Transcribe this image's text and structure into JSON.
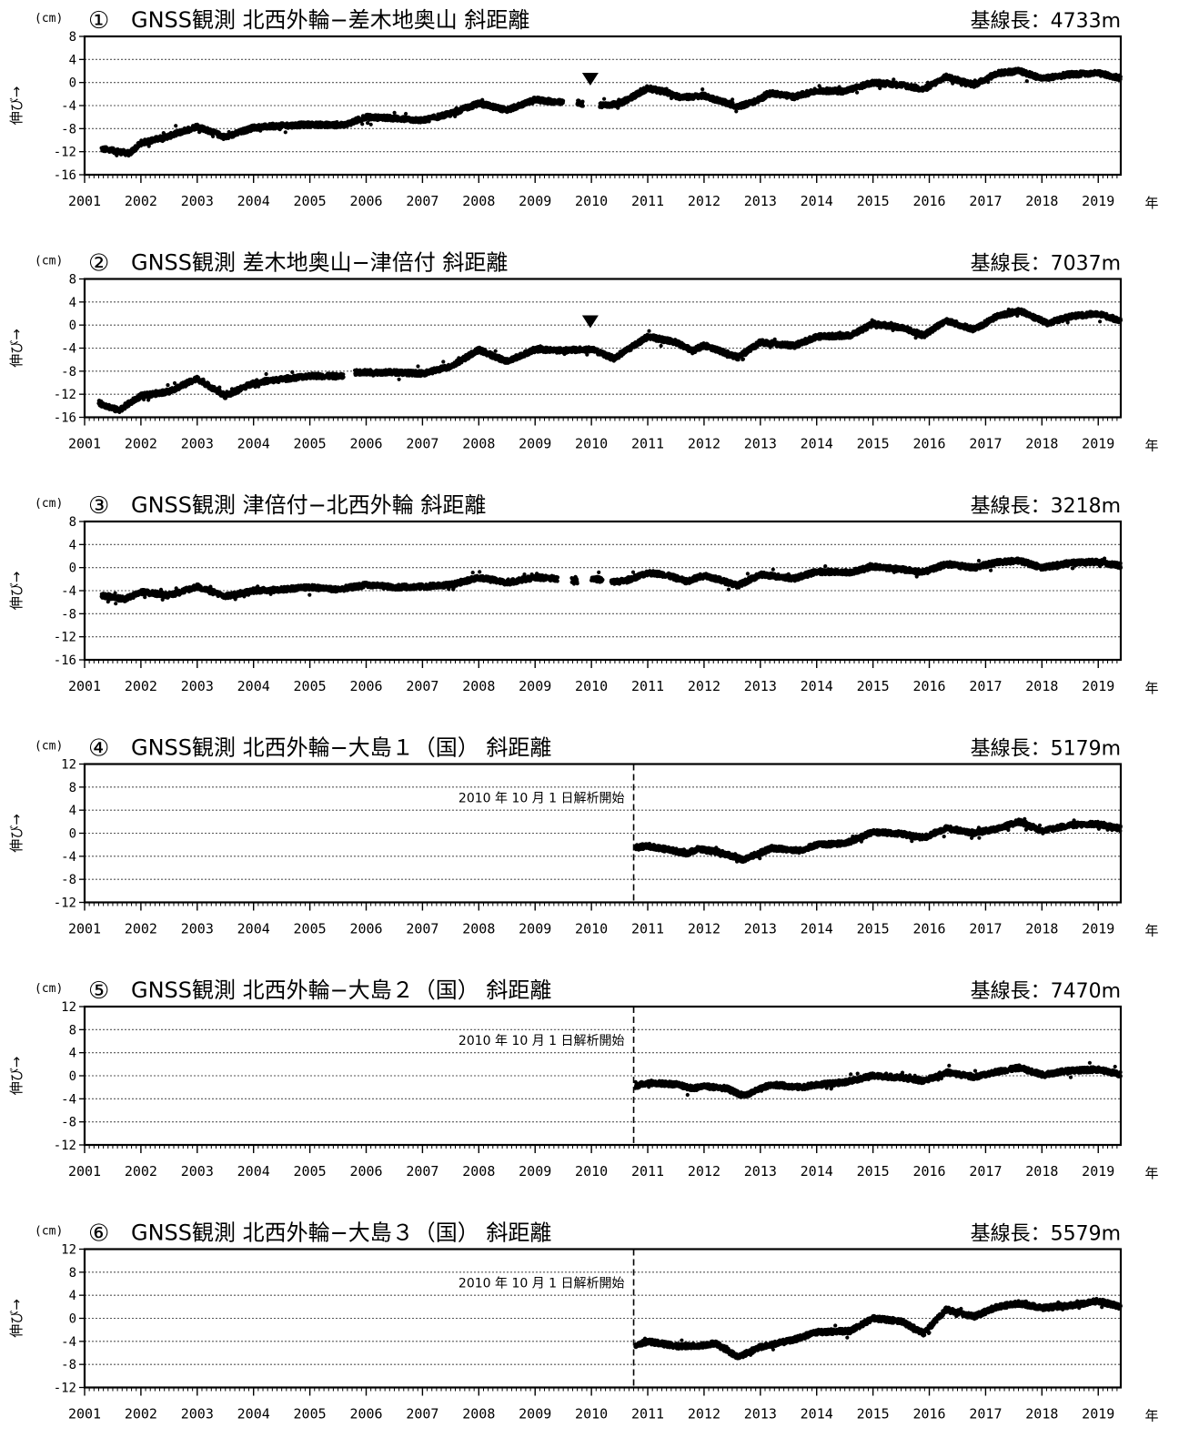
{
  "common": {
    "unit_label": "(cm)",
    "y_axis_label": "伸び→",
    "x_axis_unit": "年",
    "start_note": "2010 年 10 月 1 日解析開始",
    "x_ticks": [
      "2001",
      "2002",
      "2003",
      "2004",
      "2005",
      "2006",
      "2007",
      "2008",
      "2009",
      "2010",
      "2011",
      "2012",
      "2013",
      "2014",
      "2015",
      "2016",
      "2017",
      "2018",
      "2019"
    ],
    "x_range": [
      2001.0,
      2019.4
    ],
    "marker_symbol": "▼",
    "colors": {
      "data": "#000000",
      "grid": "#555555",
      "axis": "#000000",
      "background": "#ffffff"
    }
  },
  "chart_data": [
    {
      "type": "scatter",
      "number": "①",
      "title": "GNSS観測 北西外輪−差木地奥山 斜距離",
      "baseline": "基線長：4733m",
      "ylim": [
        -16,
        8
      ],
      "y_ticks": [
        8,
        4,
        0,
        -4,
        -8,
        -12,
        -16
      ],
      "start_line_year": null,
      "marker_year": 2009.98,
      "segments": [
        {
          "from": 2001.3,
          "to": 2009.5,
          "points": [
            [
              2001.3,
              -11.5
            ],
            [
              2001.8,
              -12.3
            ],
            [
              2002.0,
              -10.5
            ],
            [
              2002.5,
              -9.3
            ],
            [
              2003.0,
              -7.6
            ],
            [
              2003.5,
              -9.5
            ],
            [
              2004.0,
              -7.8
            ],
            [
              2004.5,
              -7.5
            ],
            [
              2005.0,
              -7.3
            ],
            [
              2005.6,
              -7.4
            ],
            [
              2006.0,
              -6.0
            ],
            [
              2006.5,
              -6.2
            ],
            [
              2007.0,
              -6.6
            ],
            [
              2007.5,
              -5.4
            ],
            [
              2008.0,
              -3.6
            ],
            [
              2008.5,
              -4.8
            ],
            [
              2009.0,
              -3.0
            ],
            [
              2009.5,
              -3.5
            ]
          ]
        },
        {
          "from": 2009.75,
          "to": 2009.85,
          "points": [
            [
              2009.75,
              -3.5
            ],
            [
              2009.85,
              -3.7
            ]
          ]
        },
        {
          "from": 2010.15,
          "to": 2019.4,
          "points": [
            [
              2010.15,
              -4.0
            ],
            [
              2010.5,
              -3.7
            ],
            [
              2011.0,
              -1.0
            ],
            [
              2011.3,
              -1.6
            ],
            [
              2011.6,
              -2.6
            ],
            [
              2012.0,
              -2.3
            ],
            [
              2012.6,
              -4.2
            ],
            [
              2012.9,
              -3.3
            ],
            [
              2013.2,
              -1.8
            ],
            [
              2013.6,
              -2.5
            ],
            [
              2014.0,
              -1.4
            ],
            [
              2014.5,
              -1.5
            ],
            [
              2015.0,
              0.0
            ],
            [
              2015.5,
              -0.4
            ],
            [
              2015.9,
              -1.2
            ],
            [
              2016.3,
              1.0
            ],
            [
              2016.8,
              -0.4
            ],
            [
              2017.2,
              1.6
            ],
            [
              2017.6,
              2.0
            ],
            [
              2018.0,
              0.7
            ],
            [
              2018.5,
              1.4
            ],
            [
              2019.0,
              1.6
            ],
            [
              2019.4,
              0.8
            ]
          ]
        }
      ]
    },
    {
      "type": "scatter",
      "number": "②",
      "title": "GNSS観測 差木地奥山−津倍付 斜距離",
      "baseline": "基線長：7037m",
      "ylim": [
        -16,
        8
      ],
      "y_ticks": [
        8,
        4,
        0,
        -4,
        -8,
        -12,
        -16
      ],
      "start_line_year": null,
      "marker_year": 2009.98,
      "segments": [
        {
          "from": 2001.25,
          "to": 2005.6,
          "points": [
            [
              2001.25,
              -13.5
            ],
            [
              2001.6,
              -14.8
            ],
            [
              2002.0,
              -12.3
            ],
            [
              2002.5,
              -11.5
            ],
            [
              2003.0,
              -9.3
            ],
            [
              2003.5,
              -12.3
            ],
            [
              2004.0,
              -10.0
            ],
            [
              2004.5,
              -9.4
            ],
            [
              2005.0,
              -8.8
            ],
            [
              2005.6,
              -8.9
            ]
          ]
        },
        {
          "from": 2005.8,
          "to": 2019.4,
          "points": [
            [
              2005.8,
              -8.2
            ],
            [
              2006.5,
              -8.2
            ],
            [
              2007.0,
              -8.4
            ],
            [
              2007.5,
              -7.2
            ],
            [
              2008.0,
              -4.3
            ],
            [
              2008.5,
              -6.3
            ],
            [
              2009.0,
              -4.2
            ],
            [
              2009.5,
              -4.4
            ],
            [
              2010.0,
              -4.2
            ],
            [
              2010.4,
              -5.8
            ],
            [
              2011.0,
              -2.0
            ],
            [
              2011.5,
              -3.0
            ],
            [
              2011.8,
              -4.5
            ],
            [
              2012.0,
              -3.5
            ],
            [
              2012.6,
              -5.6
            ],
            [
              2013.0,
              -3.0
            ],
            [
              2013.6,
              -3.6
            ],
            [
              2014.0,
              -2.0
            ],
            [
              2014.6,
              -1.8
            ],
            [
              2015.0,
              0.2
            ],
            [
              2015.5,
              -0.4
            ],
            [
              2015.9,
              -1.8
            ],
            [
              2016.3,
              0.8
            ],
            [
              2016.8,
              -0.8
            ],
            [
              2017.2,
              1.5
            ],
            [
              2017.6,
              2.5
            ],
            [
              2018.1,
              0.3
            ],
            [
              2018.5,
              1.5
            ],
            [
              2019.0,
              2.0
            ],
            [
              2019.4,
              0.7
            ]
          ]
        }
      ]
    },
    {
      "type": "scatter",
      "number": "③",
      "title": "GNSS観測 津倍付−北西外輪 斜距離",
      "baseline": "基線長：3218m",
      "ylim": [
        -16,
        8
      ],
      "y_ticks": [
        8,
        4,
        0,
        -4,
        -8,
        -12,
        -16
      ],
      "start_line_year": null,
      "marker_year": null,
      "segments": [
        {
          "from": 2001.3,
          "to": 2009.4,
          "points": [
            [
              2001.3,
              -4.8
            ],
            [
              2001.7,
              -5.5
            ],
            [
              2002.0,
              -4.2
            ],
            [
              2002.5,
              -4.8
            ],
            [
              2003.0,
              -3.3
            ],
            [
              2003.5,
              -5.0
            ],
            [
              2004.0,
              -4.0
            ],
            [
              2004.5,
              -3.8
            ],
            [
              2005.0,
              -3.4
            ],
            [
              2005.5,
              -3.8
            ],
            [
              2006.0,
              -3.0
            ],
            [
              2006.5,
              -3.4
            ],
            [
              2007.0,
              -3.3
            ],
            [
              2007.5,
              -3.0
            ],
            [
              2008.0,
              -1.7
            ],
            [
              2008.5,
              -2.6
            ],
            [
              2009.0,
              -1.7
            ],
            [
              2009.4,
              -1.9
            ]
          ]
        },
        {
          "from": 2009.65,
          "to": 2009.75,
          "points": [
            [
              2009.65,
              -2.1
            ],
            [
              2009.75,
              -2.0
            ]
          ]
        },
        {
          "from": 2010.0,
          "to": 2010.2,
          "points": [
            [
              2010.0,
              -1.8
            ],
            [
              2010.2,
              -2.2
            ]
          ]
        },
        {
          "from": 2010.35,
          "to": 2019.4,
          "points": [
            [
              2010.35,
              -2.5
            ],
            [
              2010.6,
              -2.3
            ],
            [
              2011.0,
              -0.9
            ],
            [
              2011.3,
              -1.2
            ],
            [
              2011.7,
              -2.4
            ],
            [
              2012.0,
              -1.3
            ],
            [
              2012.6,
              -3.1
            ],
            [
              2013.0,
              -1.2
            ],
            [
              2013.6,
              -1.9
            ],
            [
              2014.0,
              -0.7
            ],
            [
              2014.6,
              -0.8
            ],
            [
              2015.0,
              0.2
            ],
            [
              2015.5,
              -0.3
            ],
            [
              2015.9,
              -0.8
            ],
            [
              2016.3,
              0.6
            ],
            [
              2016.8,
              0.0
            ],
            [
              2017.2,
              0.9
            ],
            [
              2017.6,
              1.2
            ],
            [
              2018.0,
              0.0
            ],
            [
              2018.5,
              0.8
            ],
            [
              2019.0,
              1.0
            ],
            [
              2019.4,
              0.3
            ]
          ]
        }
      ]
    },
    {
      "type": "scatter",
      "number": "④",
      "title": "GNSS観測 北西外輪−大島１（国） 斜距離",
      "baseline": "基線長：5179m",
      "ylim": [
        -12,
        12
      ],
      "y_ticks": [
        12,
        8,
        4,
        0,
        -4,
        -8,
        -12
      ],
      "start_line_year": 2010.75,
      "marker_year": null,
      "segments": [
        {
          "from": 2010.78,
          "to": 2019.4,
          "points": [
            [
              2010.78,
              -2.5
            ],
            [
              2011.0,
              -2.2
            ],
            [
              2011.4,
              -2.9
            ],
            [
              2011.7,
              -3.5
            ],
            [
              2011.9,
              -2.7
            ],
            [
              2012.3,
              -3.4
            ],
            [
              2012.7,
              -4.6
            ],
            [
              2013.2,
              -2.6
            ],
            [
              2013.7,
              -3.0
            ],
            [
              2014.0,
              -2.0
            ],
            [
              2014.5,
              -1.8
            ],
            [
              2015.0,
              0.2
            ],
            [
              2015.5,
              -0.1
            ],
            [
              2015.9,
              -0.8
            ],
            [
              2016.3,
              0.9
            ],
            [
              2016.8,
              0.0
            ],
            [
              2017.2,
              0.8
            ],
            [
              2017.6,
              2.0
            ],
            [
              2018.0,
              0.4
            ],
            [
              2018.5,
              1.4
            ],
            [
              2019.0,
              1.6
            ],
            [
              2019.4,
              0.8
            ]
          ]
        }
      ]
    },
    {
      "type": "scatter",
      "number": "⑤",
      "title": "GNSS観測 北西外輪−大島２（国） 斜距離",
      "baseline": "基線長：7470m",
      "ylim": [
        -12,
        12
      ],
      "y_ticks": [
        12,
        8,
        4,
        0,
        -4,
        -8,
        -12
      ],
      "start_line_year": 2010.75,
      "marker_year": null,
      "segments": [
        {
          "from": 2010.78,
          "to": 2019.4,
          "points": [
            [
              2010.78,
              -1.8
            ],
            [
              2011.0,
              -1.2
            ],
            [
              2011.5,
              -1.5
            ],
            [
              2011.8,
              -2.2
            ],
            [
              2012.0,
              -1.8
            ],
            [
              2012.4,
              -2.2
            ],
            [
              2012.7,
              -3.5
            ],
            [
              2013.2,
              -1.5
            ],
            [
              2013.7,
              -2.0
            ],
            [
              2014.0,
              -1.6
            ],
            [
              2014.5,
              -1.1
            ],
            [
              2015.0,
              0.0
            ],
            [
              2015.5,
              -0.3
            ],
            [
              2015.9,
              -0.9
            ],
            [
              2016.3,
              0.6
            ],
            [
              2016.8,
              -0.2
            ],
            [
              2017.2,
              0.7
            ],
            [
              2017.6,
              1.4
            ],
            [
              2018.0,
              0.2
            ],
            [
              2018.5,
              0.9
            ],
            [
              2019.0,
              1.1
            ],
            [
              2019.4,
              0.2
            ]
          ]
        }
      ]
    },
    {
      "type": "scatter",
      "number": "⑥",
      "title": "GNSS観測 北西外輪−大島３（国） 斜距離",
      "baseline": "基線長：5579m",
      "ylim": [
        -12,
        12
      ],
      "y_ticks": [
        12,
        8,
        4,
        0,
        -4,
        -8,
        -12
      ],
      "start_line_year": 2010.75,
      "marker_year": null,
      "segments": [
        {
          "from": 2010.78,
          "to": 2019.4,
          "points": [
            [
              2010.78,
              -4.7
            ],
            [
              2011.0,
              -4.0
            ],
            [
              2011.5,
              -4.8
            ],
            [
              2011.9,
              -4.8
            ],
            [
              2012.2,
              -4.3
            ],
            [
              2012.6,
              -6.7
            ],
            [
              2013.0,
              -5.0
            ],
            [
              2013.6,
              -3.7
            ],
            [
              2014.0,
              -2.4
            ],
            [
              2014.6,
              -2.2
            ],
            [
              2015.0,
              0.0
            ],
            [
              2015.5,
              -0.5
            ],
            [
              2015.9,
              -2.6
            ],
            [
              2016.3,
              1.5
            ],
            [
              2016.8,
              0.3
            ],
            [
              2017.2,
              2.0
            ],
            [
              2017.6,
              2.6
            ],
            [
              2018.0,
              1.8
            ],
            [
              2018.5,
              2.2
            ],
            [
              2019.0,
              3.0
            ],
            [
              2019.4,
              2.0
            ]
          ]
        }
      ]
    }
  ]
}
